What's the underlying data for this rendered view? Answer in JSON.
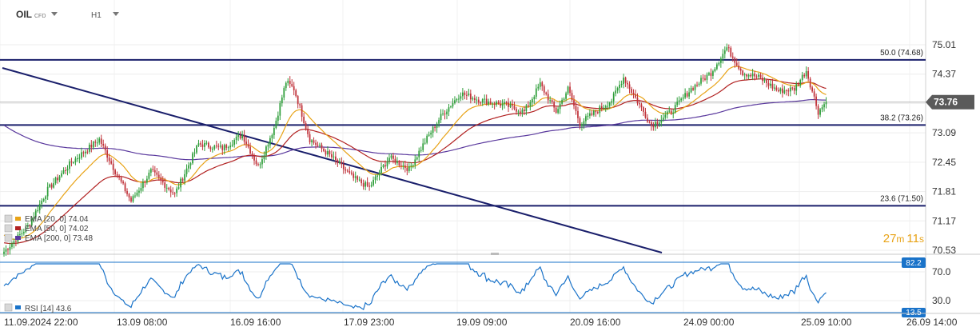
{
  "header": {
    "symbol": "OIL",
    "symbol_tag": "CFD",
    "timeframe": "H1"
  },
  "price_pane": {
    "last_price": "73.76",
    "countdown_min": "27",
    "countdown_min_unit": "m",
    "countdown_sec": "11",
    "countdown_sec_unit": "s",
    "fib_levels": [
      {
        "label": "50.0 (74.68)",
        "value": 74.68
      },
      {
        "label": "38.2 (73.26)",
        "value": 73.26
      },
      {
        "label": "23.6 (71.50)",
        "value": 71.5
      }
    ],
    "legend": [
      {
        "label": "EMA [20, 0] 74.04",
        "color": "#e8a317"
      },
      {
        "label": "EMA [50, 0] 74.02",
        "color": "#b22222"
      },
      {
        "label": "EMA [200, 0] 73.48",
        "color": "#5b3a9e"
      }
    ]
  },
  "rsi_pane": {
    "label": "RSI [14] 43.6",
    "upper_badge": "82.2",
    "lower_badge": "13.5",
    "ticks": [
      "70.0",
      "30.0"
    ]
  },
  "colors": {
    "bull": "#2e9e3a",
    "bear": "#c0323a",
    "fib": "#1a1f6b",
    "trend": "#1a1f6b",
    "ema20": "#e8a317",
    "ema50": "#b22222",
    "ema200": "#5b3a9e",
    "rsi": "#1a73c9",
    "badge": "#1a73c9",
    "countdown": "#e8a317"
  },
  "chart_data": {
    "type": "candlestick",
    "symbol": "OIL",
    "timeframe": "H1",
    "y_ticks": [
      "75.01",
      "74.37",
      "73.73",
      "73.09",
      "72.45",
      "71.81",
      "71.17",
      "70.53"
    ],
    "ylim": [
      70.45,
      75.25
    ],
    "x_ticks": [
      "11.09.2024 22:00",
      "13.09 08:00",
      "16.09 16:00",
      "17.09 23:00",
      "19.09 09:00",
      "20.09 16:00",
      "24.09 00:00",
      "25.09 10:00",
      "26.09 14:00"
    ],
    "rsi_range": [
      0,
      100
    ],
    "series": [
      {
        "name": "EMA [20, 0] 74.04",
        "kind": "ema",
        "period": 20
      },
      {
        "name": "EMA [50, 0] 74.02",
        "kind": "ema",
        "period": 50
      },
      {
        "name": "EMA [200, 0] 73.48",
        "kind": "ema",
        "period": 200
      },
      {
        "name": "RSI [14] 43.6",
        "kind": "rsi",
        "period": 14
      }
    ],
    "anchors": [
      [
        0,
        70.5
      ],
      [
        12,
        71.05
      ],
      [
        22,
        71.85
      ],
      [
        34,
        72.45
      ],
      [
        48,
        72.95
      ],
      [
        56,
        72.25
      ],
      [
        64,
        71.6
      ],
      [
        74,
        72.25
      ],
      [
        86,
        71.75
      ],
      [
        98,
        72.85
      ],
      [
        110,
        72.75
      ],
      [
        120,
        73.05
      ],
      [
        128,
        72.35
      ],
      [
        136,
        73.2
      ],
      [
        142,
        74.2
      ],
      [
        146,
        74.05
      ],
      [
        154,
        72.95
      ],
      [
        164,
        72.6
      ],
      [
        176,
        72.1
      ],
      [
        184,
        71.9
      ],
      [
        194,
        72.55
      ],
      [
        204,
        72.3
      ],
      [
        212,
        72.9
      ],
      [
        220,
        73.45
      ],
      [
        230,
        73.95
      ],
      [
        240,
        73.8
      ],
      [
        252,
        73.7
      ],
      [
        262,
        73.55
      ],
      [
        270,
        74.15
      ],
      [
        278,
        73.55
      ],
      [
        284,
        74.05
      ],
      [
        290,
        73.3
      ],
      [
        298,
        73.55
      ],
      [
        306,
        73.8
      ],
      [
        312,
        74.3
      ],
      [
        318,
        73.85
      ],
      [
        326,
        73.25
      ],
      [
        336,
        73.55
      ],
      [
        346,
        74.05
      ],
      [
        356,
        74.4
      ],
      [
        364,
        74.95
      ],
      [
        372,
        74.4
      ],
      [
        380,
        74.3
      ],
      [
        390,
        74.0
      ],
      [
        398,
        74.05
      ],
      [
        404,
        74.45
      ],
      [
        410,
        73.55
      ],
      [
        414,
        73.76
      ]
    ]
  }
}
